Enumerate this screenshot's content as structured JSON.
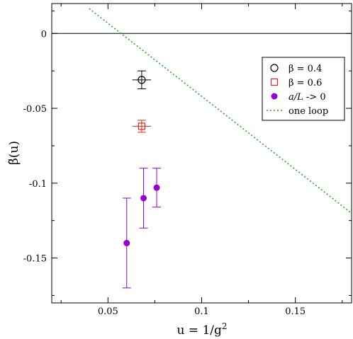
{
  "chart_data": {
    "type": "scatter",
    "title": "",
    "xlabel": "u = 1/g²",
    "ylabel": "β̃(u)",
    "xlim": [
      0.02,
      0.18
    ],
    "ylim": [
      -0.18,
      0.02
    ],
    "xticks": [
      0.05,
      0.1,
      0.15
    ],
    "xtick_labels": [
      "0.05",
      "0.1",
      "0.15"
    ],
    "yticks": [
      0,
      -0.05,
      -0.1,
      -0.15
    ],
    "ytick_labels": [
      "0",
      "-0.05",
      "-0.1",
      "-0.15"
    ],
    "grid": false,
    "legend_position": "top-right",
    "reference_lines": [
      {
        "y": 0,
        "color": "#000000"
      }
    ],
    "series": [
      {
        "name": "β = 0.4",
        "marker": "open-circle",
        "color": "#000000",
        "points": [
          {
            "x": 0.068,
            "y": -0.031,
            "yerr": 0.006,
            "xerr": 0.005
          }
        ]
      },
      {
        "name": "β = 0.6",
        "marker": "open-square",
        "color": "#e0261e",
        "points": [
          {
            "x": 0.068,
            "y": -0.062,
            "yerr": 0.004,
            "xerr": 0.005
          }
        ]
      },
      {
        "name": "a/L -> 0",
        "marker": "filled-circle",
        "color": "#9400d3",
        "points": [
          {
            "x": 0.06,
            "y": -0.14,
            "yerr": 0.03
          },
          {
            "x": 0.069,
            "y": -0.11,
            "yerr": 0.02
          },
          {
            "x": 0.076,
            "y": -0.103,
            "yerr": 0.013
          }
        ]
      },
      {
        "name": "one loop",
        "marker": "dotted-line",
        "color": "#22aa22",
        "line": [
          {
            "x": 0.04,
            "y": 0.0166
          },
          {
            "x": 0.18,
            "y": -0.1201
          }
        ]
      }
    ]
  }
}
